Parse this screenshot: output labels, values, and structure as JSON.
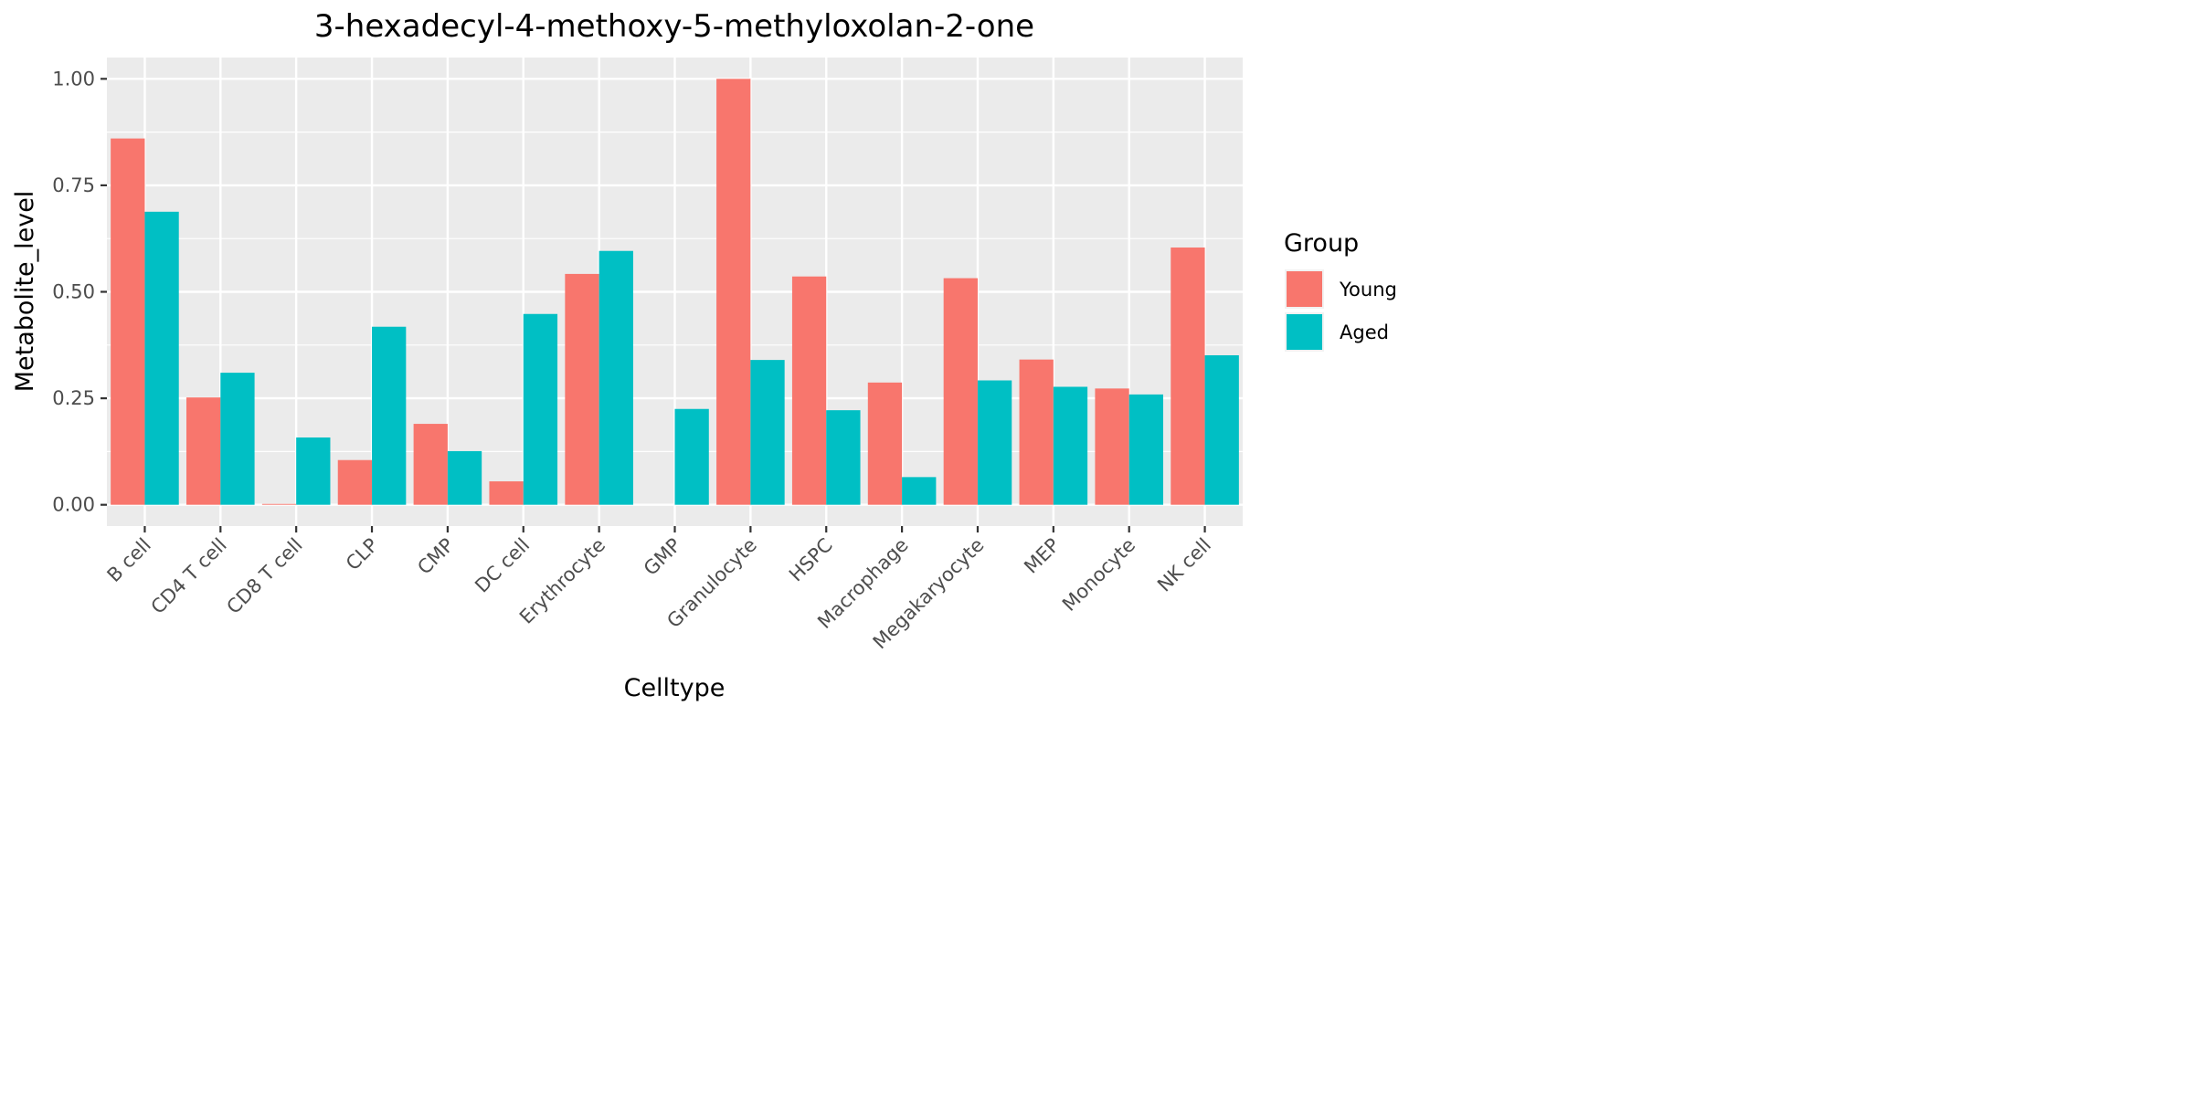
{
  "chart_data": {
    "type": "bar",
    "title": "3-hexadecyl-4-methoxy-5-methyloxolan-2-one",
    "xlabel": "Celltype",
    "ylabel": "Metabolite_level",
    "ylim": [
      -0.05,
      1.05
    ],
    "yticks": [
      0,
      0.25,
      0.5,
      0.75,
      1
    ],
    "ytick_labels": [
      "0.00",
      "0.25",
      "0.50",
      "0.75",
      "1.00"
    ],
    "grid": true,
    "legend": {
      "title": "Group",
      "position": "right"
    },
    "categories": [
      "B cell",
      "CD4 T cell",
      "CD8 T cell",
      "CLP",
      "CMP",
      "DC cell",
      "Erythrocyte",
      "GMP",
      "Granulocyte",
      "HSPC",
      "Macrophage",
      "Megakaryocyte",
      "MEP",
      "Monocyte",
      "NK cell"
    ],
    "series": [
      {
        "name": "Young",
        "color": "#F8766D",
        "values": [
          0.86,
          0.252,
          0.002,
          0.105,
          0.19,
          0.055,
          0.542,
          0.0,
          1.0,
          0.536,
          0.287,
          0.532,
          0.341,
          0.273,
          0.604
        ]
      },
      {
        "name": "Aged",
        "color": "#00BFC4",
        "values": [
          0.688,
          0.31,
          0.158,
          0.418,
          0.126,
          0.448,
          0.596,
          0.225,
          0.34,
          0.222,
          0.065,
          0.292,
          0.277,
          0.259,
          0.351
        ]
      }
    ]
  }
}
